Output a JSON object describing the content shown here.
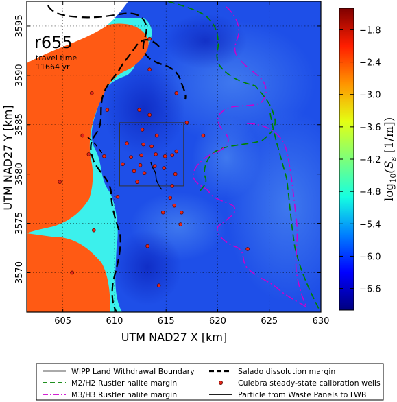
{
  "chart_data": {
    "type": "heatmap",
    "run_label": "r655",
    "travel_time_label": "travel time",
    "travel_time_value": "11664 yr",
    "xlabel": "UTM NAD27 X [km]",
    "ylabel": "UTM NAD27 Y [km]",
    "xlim": [
      601.5,
      630
    ],
    "ylim": [
      3566,
      3597.5
    ],
    "xticks": [
      605,
      610,
      615,
      620,
      625,
      630
    ],
    "yticks": [
      3570,
      3575,
      3580,
      3585,
      3590,
      3595
    ],
    "colorbar": {
      "label_prefix": "log",
      "label_sub": "10",
      "label_body": "(S",
      "label_sub2": "s",
      "label_suffix": " [1/m])",
      "range": [
        -7.0,
        -1.4
      ],
      "ticks": [
        -1.8,
        -2.4,
        -3.0,
        -3.6,
        -4.2,
        -4.8,
        -5.4,
        -6.0,
        -6.6
      ],
      "colors": [
        "#00007f",
        "#0000ff",
        "#0080ff",
        "#15ffe1",
        "#7dff7a",
        "#e4ff13",
        "#ff9400",
        "#ff1e00",
        "#7f0000"
      ]
    },
    "zones": [
      {
        "name": "high-storativity",
        "value": -2.3,
        "color": "#ff5a14"
      },
      {
        "name": "medium-storativity",
        "value": -5.0,
        "color": "#3cf0ec"
      },
      {
        "name": "background",
        "value": -6.3,
        "color": "#1e4fe8"
      },
      {
        "name": "no-data",
        "color": "#ffffff"
      }
    ],
    "wipp_boundary": {
      "x": [
        610.5,
        616.7
      ],
      "y": [
        3578.8,
        3585.2
      ]
    },
    "wells": [
      {
        "x": 613.4,
        "y": 3593.7
      },
      {
        "x": 613.4,
        "y": 3590.6
      },
      {
        "x": 616.0,
        "y": 3588.2
      },
      {
        "x": 607.8,
        "y": 3588.2
      },
      {
        "x": 612.4,
        "y": 3586.5
      },
      {
        "x": 609.3,
        "y": 3586.5
      },
      {
        "x": 613.4,
        "y": 3586.0
      },
      {
        "x": 617.0,
        "y": 3585.2
      },
      {
        "x": 606.9,
        "y": 3583.9
      },
      {
        "x": 612.7,
        "y": 3584.5
      },
      {
        "x": 614.1,
        "y": 3583.9
      },
      {
        "x": 618.6,
        "y": 3583.9
      },
      {
        "x": 611.2,
        "y": 3583.1
      },
      {
        "x": 612.8,
        "y": 3583.0
      },
      {
        "x": 613.6,
        "y": 3582.8
      },
      {
        "x": 616.0,
        "y": 3582.3
      },
      {
        "x": 607.5,
        "y": 3582.0
      },
      {
        "x": 609.0,
        "y": 3581.8
      },
      {
        "x": 611.6,
        "y": 3581.7
      },
      {
        "x": 612.6,
        "y": 3581.9
      },
      {
        "x": 614.0,
        "y": 3582.0
      },
      {
        "x": 614.9,
        "y": 3581.8
      },
      {
        "x": 615.6,
        "y": 3581.9
      },
      {
        "x": 610.8,
        "y": 3581.0
      },
      {
        "x": 612.5,
        "y": 3580.9
      },
      {
        "x": 613.9,
        "y": 3580.8
      },
      {
        "x": 614.8,
        "y": 3580.6
      },
      {
        "x": 611.9,
        "y": 3580.3
      },
      {
        "x": 612.9,
        "y": 3580.1
      },
      {
        "x": 615.9,
        "y": 3580.0
      },
      {
        "x": 612.2,
        "y": 3579.2
      },
      {
        "x": 615.6,
        "y": 3578.8
      },
      {
        "x": 604.7,
        "y": 3579.2
      },
      {
        "x": 610.3,
        "y": 3577.7
      },
      {
        "x": 615.4,
        "y": 3577.6
      },
      {
        "x": 615.8,
        "y": 3576.8
      },
      {
        "x": 616.5,
        "y": 3576.1
      },
      {
        "x": 614.7,
        "y": 3576.1
      },
      {
        "x": 616.4,
        "y": 3574.9
      },
      {
        "x": 608.0,
        "y": 3574.3
      },
      {
        "x": 613.2,
        "y": 3572.7
      },
      {
        "x": 622.9,
        "y": 3572.4
      },
      {
        "x": 605.9,
        "y": 3570.0
      },
      {
        "x": 614.3,
        "y": 3568.7
      }
    ],
    "legend": {
      "placement": "bottom",
      "entries": [
        {
          "label": "WIPP Land Withdrawal Boundary",
          "style": "thin-solid",
          "color": "#555555"
        },
        {
          "label": "Salado dissolution margin",
          "style": "dashed",
          "color": "#000000"
        },
        {
          "label": "M2/H2 Rustler halite margin",
          "style": "dashed",
          "color": "#008000"
        },
        {
          "label": "Culebra steady-state calibration wells",
          "style": "dot",
          "color": "#e8261a"
        },
        {
          "label": "M3/H3 Rustler halite margin",
          "style": "dashdot",
          "color": "#cc00cc"
        },
        {
          "label": "Particle from Waste Panels to LWB",
          "style": "solid",
          "color": "#000000"
        }
      ]
    },
    "grid": true
  }
}
